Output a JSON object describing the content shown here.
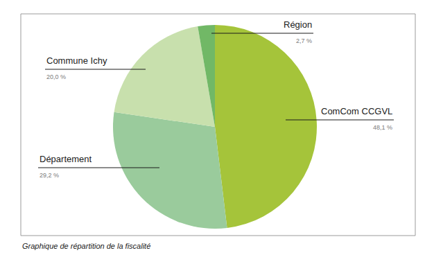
{
  "chart_data": {
    "type": "pie",
    "caption": "Graphique de répartition de la fiscalité",
    "categories": [
      "ComCom CCGVL",
      "Département",
      "Commune Ichy",
      "Région"
    ],
    "values": [
      48.1,
      29.2,
      20.0,
      2.7
    ],
    "value_labels": [
      "48,1 %",
      "29,2 %",
      "20,0 %",
      "2,7 %"
    ],
    "colors": [
      "#a5c43a",
      "#9acb9c",
      "#c8e0ad",
      "#71b866"
    ],
    "data_labels": true,
    "legend": false
  }
}
